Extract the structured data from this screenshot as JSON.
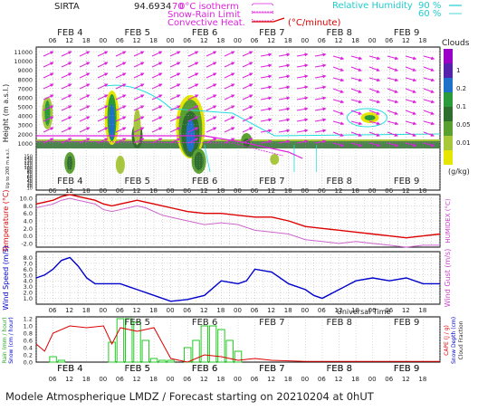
{
  "header": {
    "station": "SIRTA",
    "station_number": "94.6934",
    "clipped_text": "70",
    "legend_isotherm": "0°C isotherm",
    "legend_snow_rain": "Snow-Rain Limit",
    "legend_convective": "Convective Heat.",
    "legend_convective_unit": "(°C/minute)",
    "legend_rh": "Relative Humidity",
    "rh_90": "90 %",
    "rh_60": "60 %"
  },
  "footer": {
    "caption": "Modele Atmospherique LMDZ / Forecast starting on 20210204 at 0hUT",
    "universal_time": "Universal Time"
  },
  "days": [
    "FEB 4",
    "FEB 5",
    "FEB 6",
    "FEB 7",
    "FEB 8",
    "FEB 9"
  ],
  "hour_ticks": [
    "06",
    "12",
    "18",
    "00"
  ],
  "colors": {
    "magenta": "#dd22dd",
    "cyan": "#22dddd",
    "red": "#dd0000",
    "blue": "#0000cc",
    "green": "#22cc22"
  },
  "chart_data": [
    {
      "type": "heatmap",
      "name": "clouds",
      "legend_title": "Clouds",
      "legend_unit": "(g/kg)",
      "legend_levels": [
        "1",
        "0.2",
        "0.1",
        "0.05",
        "0.01"
      ],
      "legend_colors": [
        "#9a00c8",
        "#5522aa",
        "#1e70c8",
        "#2a9a3a",
        "#2e6d2e",
        "#5aa030",
        "#a8c83a",
        "#e6e600"
      ],
      "ylabel_upper": "Height (m a.s.l.)",
      "ylabel_lower": "Up to 200 m a.s.l.",
      "y_ticks_upper": [
        1000,
        2000,
        3000,
        4000,
        5000,
        6000,
        7000,
        8000,
        9000,
        10000,
        11000
      ],
      "y_ticks_lower": [
        10,
        20,
        30,
        40,
        50,
        60,
        70,
        80,
        90,
        100,
        110,
        120,
        130,
        140,
        150
      ],
      "ylim_upper": [
        0,
        11500
      ],
      "x_range_hours": [
        0,
        144
      ]
    },
    {
      "type": "line",
      "name": "temperature",
      "ylabel": "Temperature (°C)",
      "ylabel_right": "HUMIDEX (°C)",
      "y_ticks": [
        -2.0,
        0.0,
        2.0,
        4.0,
        6.0,
        8.0,
        10.0
      ],
      "ylim": [
        -3,
        11
      ],
      "series": [
        {
          "name": "Temperature",
          "color": "#dd0000",
          "x": [
            0,
            3,
            6,
            9,
            12,
            15,
            18,
            21,
            24,
            27,
            30,
            33,
            36,
            39,
            42,
            45,
            48,
            54,
            60,
            66,
            72,
            78,
            84,
            90,
            96,
            102,
            108,
            114,
            120,
            126,
            132,
            138,
            144
          ],
          "values": [
            8.5,
            9.0,
            9.5,
            10.5,
            11.0,
            10.5,
            10.0,
            9.5,
            8.5,
            8.0,
            8.5,
            9.0,
            9.5,
            9.0,
            8.5,
            8.0,
            7.5,
            6.5,
            6.0,
            6.0,
            5.5,
            5.0,
            5.0,
            4.0,
            2.5,
            2.0,
            1.5,
            1.0,
            0.5,
            0.0,
            -0.5,
            0.0,
            0.5
          ]
        },
        {
          "name": "Humidex",
          "color": "#cc66cc",
          "x": [
            0,
            3,
            6,
            9,
            12,
            15,
            18,
            21,
            24,
            27,
            30,
            33,
            36,
            39,
            42,
            45,
            48,
            54,
            60,
            66,
            72,
            78,
            84,
            90,
            96,
            102,
            108,
            114,
            120,
            126,
            132,
            138,
            144
          ],
          "values": [
            7.5,
            8.0,
            8.5,
            9.5,
            10.0,
            9.5,
            9.0,
            8.5,
            7.0,
            6.5,
            7.0,
            7.5,
            8.0,
            7.5,
            6.5,
            5.5,
            5.0,
            4.0,
            3.0,
            3.5,
            3.0,
            1.5,
            1.0,
            0.5,
            -1.0,
            -1.5,
            -2.0,
            -1.5,
            -2.0,
            -2.5,
            -3.0,
            -2.5,
            -2.5
          ]
        }
      ]
    },
    {
      "type": "line",
      "name": "wind",
      "ylabel": "Wind Speed (m/s)",
      "ylabel_right": "Wind Gust (m/s)",
      "y_ticks": [
        1.0,
        2.0,
        3.0,
        4.0,
        5.0,
        6.0,
        7.0,
        8.0
      ],
      "ylim": [
        0,
        9
      ],
      "series": [
        {
          "name": "Wind Speed",
          "color": "#0000cc",
          "x": [
            0,
            3,
            6,
            9,
            12,
            15,
            18,
            21,
            24,
            27,
            30,
            33,
            36,
            42,
            48,
            54,
            60,
            66,
            72,
            75,
            78,
            84,
            90,
            96,
            99,
            102,
            108,
            114,
            120,
            126,
            132,
            138,
            144
          ],
          "values": [
            4.5,
            5.0,
            6.0,
            7.5,
            8.0,
            6.5,
            4.5,
            3.5,
            3.5,
            3.5,
            3.5,
            3.0,
            2.5,
            1.5,
            0.5,
            0.8,
            1.5,
            4.0,
            3.5,
            4.0,
            6.0,
            5.5,
            3.5,
            2.5,
            1.5,
            1.0,
            2.5,
            4.0,
            4.5,
            4.0,
            4.5,
            3.5,
            3.5
          ]
        }
      ]
    },
    {
      "type": "bar",
      "name": "precipitation",
      "ylabel_left": "Rain (mm / hour)",
      "ylabel_left2": "Snow (cm / hour)",
      "ylabel_right": "CAPE (J / g)",
      "ylabel_right2": "Snow Depth (cm)",
      "ylabel_right3": "Cloud Fraction",
      "y_ticks": [
        0.0,
        0.2,
        0.4,
        0.6,
        0.8,
        1.0,
        1.2
      ],
      "ylim": [
        0,
        1.25
      ],
      "series": [
        {
          "name": "Rain",
          "color": "#22cc22",
          "x": [
            6,
            9,
            27,
            30,
            33,
            36,
            39,
            42,
            45,
            48,
            54,
            57,
            60,
            63,
            66,
            69,
            72
          ],
          "values": [
            0.15,
            0.05,
            0.55,
            1.2,
            1.2,
            1.1,
            0.6,
            0.1,
            0.05,
            0.05,
            0.4,
            0.6,
            1.0,
            1.0,
            0.9,
            0.6,
            0.3
          ]
        },
        {
          "name": "Cloud Fraction",
          "color": "#dd0000",
          "x": [
            0,
            3,
            6,
            12,
            18,
            24,
            27,
            30,
            36,
            42,
            48,
            54,
            60,
            66,
            72,
            78,
            84,
            96,
            108,
            120,
            132,
            144
          ],
          "values": [
            0.5,
            0.3,
            0.8,
            1.0,
            0.95,
            1.0,
            0.5,
            0.95,
            0.85,
            0.95,
            0.1,
            0.0,
            0.2,
            0.15,
            0.05,
            0.1,
            0.05,
            0.02,
            0.02,
            0.02,
            0.02,
            0.02
          ]
        }
      ]
    }
  ]
}
